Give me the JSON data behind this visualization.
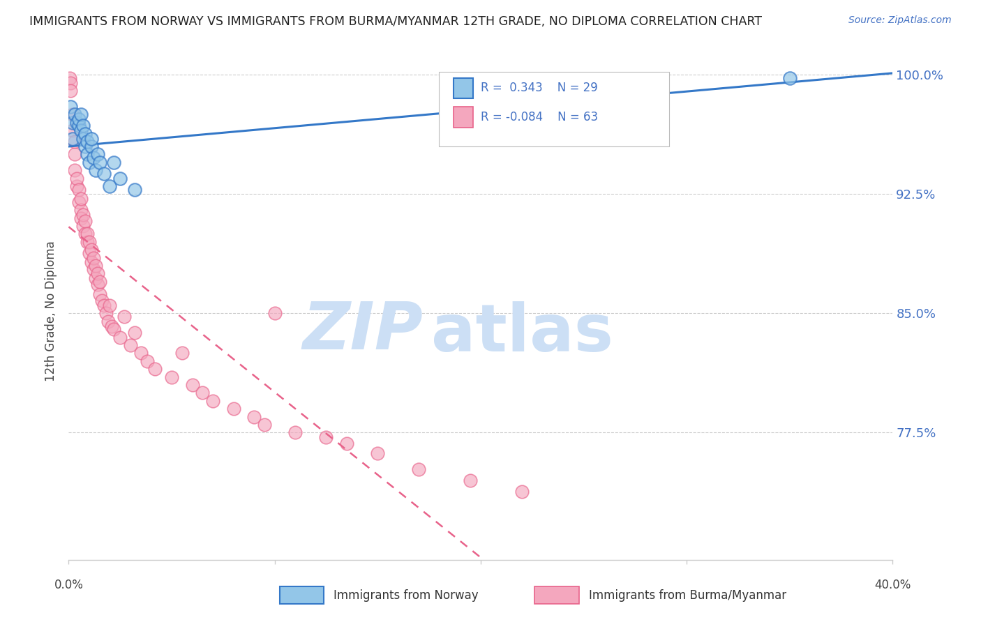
{
  "title": "IMMIGRANTS FROM NORWAY VS IMMIGRANTS FROM BURMA/MYANMAR 12TH GRADE, NO DIPLOMA CORRELATION CHART",
  "source": "Source: ZipAtlas.com",
  "ylabel_label": "12th Grade, No Diploma",
  "legend_blue_label": "Immigrants from Norway",
  "legend_pink_label": "Immigrants from Burma/Myanmar",
  "blue_color": "#93c6e8",
  "pink_color": "#f4a7be",
  "blue_line_color": "#3478c8",
  "pink_line_color": "#e8628a",
  "watermark_zip_color": "#ccdff5",
  "watermark_atlas_color": "#ccdff5",
  "right_label_color": "#4472c4",
  "x_min": 0.0,
  "x_max": 0.4,
  "y_min": 0.695,
  "y_max": 1.008,
  "yticks": [
    0.775,
    0.85,
    0.925,
    1.0
  ],
  "ytick_labels": [
    "77.5%",
    "85.0%",
    "92.5%",
    "100.0%"
  ],
  "norway_x": [
    0.0008,
    0.002,
    0.002,
    0.003,
    0.004,
    0.005,
    0.005,
    0.006,
    0.006,
    0.007,
    0.007,
    0.008,
    0.008,
    0.009,
    0.009,
    0.01,
    0.011,
    0.011,
    0.012,
    0.013,
    0.014,
    0.015,
    0.017,
    0.02,
    0.022,
    0.025,
    0.032,
    0.26,
    0.35
  ],
  "norway_y": [
    0.98,
    0.97,
    0.96,
    0.975,
    0.97,
    0.968,
    0.972,
    0.965,
    0.975,
    0.96,
    0.968,
    0.955,
    0.963,
    0.95,
    0.958,
    0.945,
    0.955,
    0.96,
    0.948,
    0.94,
    0.95,
    0.945,
    0.938,
    0.93,
    0.945,
    0.935,
    0.928,
    0.992,
    0.998
  ],
  "burma_x": [
    0.0005,
    0.001,
    0.001,
    0.002,
    0.002,
    0.003,
    0.003,
    0.003,
    0.004,
    0.004,
    0.005,
    0.005,
    0.006,
    0.006,
    0.006,
    0.007,
    0.007,
    0.008,
    0.008,
    0.009,
    0.009,
    0.01,
    0.01,
    0.011,
    0.011,
    0.012,
    0.012,
    0.013,
    0.013,
    0.014,
    0.014,
    0.015,
    0.015,
    0.016,
    0.017,
    0.018,
    0.019,
    0.02,
    0.021,
    0.022,
    0.025,
    0.027,
    0.03,
    0.032,
    0.035,
    0.038,
    0.042,
    0.05,
    0.055,
    0.06,
    0.065,
    0.07,
    0.08,
    0.09,
    0.095,
    0.1,
    0.11,
    0.125,
    0.135,
    0.15,
    0.17,
    0.195,
    0.22
  ],
  "burma_y": [
    0.998,
    0.995,
    0.99,
    0.965,
    0.975,
    0.94,
    0.95,
    0.958,
    0.93,
    0.935,
    0.92,
    0.928,
    0.915,
    0.922,
    0.91,
    0.905,
    0.912,
    0.9,
    0.908,
    0.895,
    0.9,
    0.888,
    0.895,
    0.882,
    0.89,
    0.878,
    0.885,
    0.872,
    0.88,
    0.868,
    0.875,
    0.862,
    0.87,
    0.858,
    0.855,
    0.85,
    0.845,
    0.855,
    0.842,
    0.84,
    0.835,
    0.848,
    0.83,
    0.838,
    0.825,
    0.82,
    0.815,
    0.81,
    0.825,
    0.805,
    0.8,
    0.795,
    0.79,
    0.785,
    0.78,
    0.85,
    0.775,
    0.772,
    0.768,
    0.762,
    0.752,
    0.745,
    0.738
  ],
  "norway_R": 0.343,
  "burma_R": -0.084,
  "norway_N": 29,
  "burma_N": 63
}
